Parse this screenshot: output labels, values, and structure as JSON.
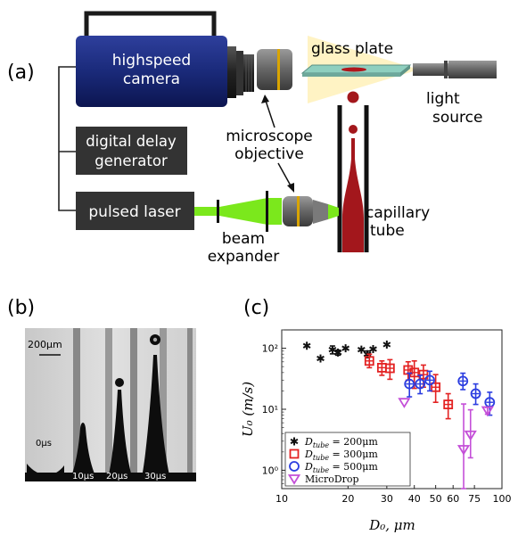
{
  "panel_a": {
    "label": "(a)",
    "camera_line1": "highspeed",
    "camera_line2": "camera",
    "glass_plate": "glass plate",
    "light_line1": "light",
    "light_line2": "source",
    "microscope_line1": "microscope",
    "microscope_line2": "objective",
    "delay_line1": "digital delay",
    "delay_line2": "generator",
    "laser": "pulsed laser",
    "beam_line1": "beam",
    "beam_line2": "expander",
    "capillary_line1": "capillary",
    "capillary_line2": "tube",
    "colors": {
      "camera": "#1a2a7a",
      "laser_beam": "#7be81c",
      "jet": "#a3171c",
      "light_cone": "#fff3c4",
      "box": "#333333"
    }
  },
  "panel_b": {
    "label": "(b)",
    "scale": "200μm",
    "times": [
      "0μs",
      "10μs",
      "20μs",
      "30μs"
    ]
  },
  "panel_c": {
    "label": "(c)",
    "chart_data": {
      "type": "scatter",
      "x_scale": "log",
      "y_scale": "log",
      "xlim": [
        10,
        100
      ],
      "ylim": [
        0.5,
        200
      ],
      "xlabel": "D₀, μm",
      "ylabel": "U₀ (m/s)",
      "x_ticks": [
        "10",
        "20",
        "30",
        "40",
        "50",
        "60",
        "75",
        "100"
      ],
      "x_tick_values": [
        10,
        20,
        30,
        40,
        50,
        60,
        75,
        100
      ],
      "y_ticks": [
        "10⁰",
        "10¹",
        "10²"
      ],
      "y_tick_values": [
        1,
        10,
        100
      ],
      "legend_position": "bottom-left",
      "series": [
        {
          "name": "D_tube = 200μm",
          "legend_label": "D",
          "legend_sub": "tube",
          "legend_rest": " = 200μm",
          "marker": "asterisk",
          "color": "#111111",
          "points": [
            [
              13,
              110,
              0,
              0
            ],
            [
              15,
              68,
              0,
              0
            ],
            [
              17,
              95,
              14,
              14
            ],
            [
              18,
              85,
              8,
              8
            ],
            [
              19.5,
              100,
              0,
              0
            ],
            [
              23,
              95,
              0,
              0
            ],
            [
              24.5,
              80,
              10,
              10
            ],
            [
              26,
              97,
              0,
              0
            ],
            [
              30,
              115,
              0,
              0
            ]
          ]
        },
        {
          "name": "D_tube = 300μm",
          "legend_label": "D",
          "legend_sub": "tube",
          "legend_rest": " = 300μm",
          "marker": "square",
          "color": "#e32222",
          "points": [
            [
              25,
              62,
              18,
              14
            ],
            [
              28.5,
              48,
              14,
              12
            ],
            [
              31,
              47,
              18,
              16
            ],
            [
              37.5,
              44,
              16,
              14
            ],
            [
              40,
              40,
              22,
              18
            ],
            [
              44,
              37,
              16,
              14
            ],
            [
              50,
              23,
              14,
              10
            ],
            [
              57,
              12,
              6,
              5
            ]
          ]
        },
        {
          "name": "D_tube = 500μm",
          "legend_label": "D",
          "legend_sub": "tube",
          "legend_rest": " = 500μm",
          "marker": "circle",
          "color": "#2b3de0",
          "points": [
            [
              38,
              26,
              13,
              10
            ],
            [
              42.5,
              26,
              10,
              8
            ],
            [
              47,
              30,
              12,
              10
            ],
            [
              66.5,
              29,
              10,
              8
            ],
            [
              76,
              18,
              8,
              6
            ],
            [
              88,
              13,
              6,
              5
            ]
          ]
        },
        {
          "name": "MicroDrop",
          "legend_label": "MicroDrop",
          "legend_sub": "",
          "legend_rest": "",
          "marker": "triangle-down",
          "color": "#c44fd8",
          "points": [
            [
              36,
              13,
              0,
              0
            ],
            [
              67,
              2.2,
              10,
              1.7
            ],
            [
              72,
              3.8,
              6,
              2.2
            ],
            [
              86,
              9.5,
              1.2,
              1.2
            ]
          ]
        }
      ]
    }
  }
}
